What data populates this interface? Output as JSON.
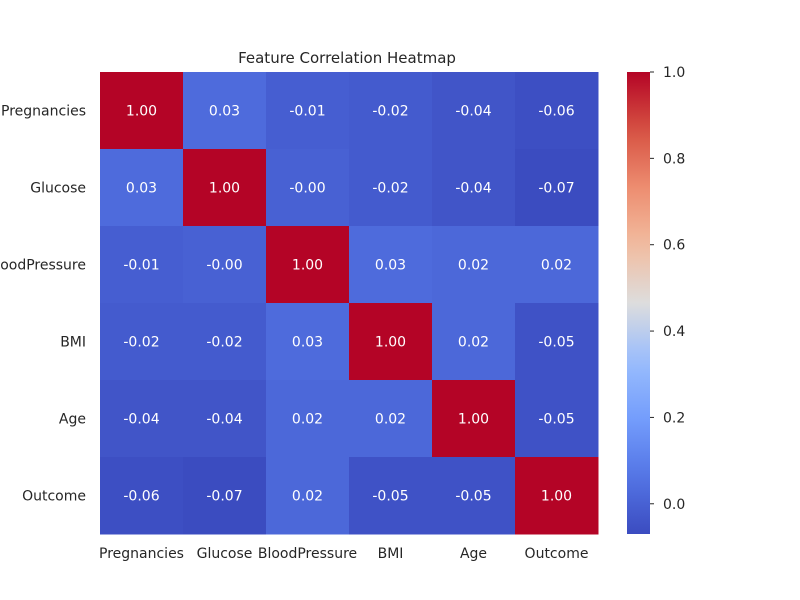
{
  "chart_data": {
    "type": "heatmap",
    "title": "Feature Correlation Heatmap",
    "rows": [
      "Pregnancies",
      "Glucose",
      "BloodPressure",
      "BMI",
      "Age",
      "Outcome"
    ],
    "columns": [
      "Pregnancies",
      "Glucose",
      "BloodPressure",
      "BMI",
      "Age",
      "Outcome"
    ],
    "values": [
      [
        1.0,
        0.03,
        -0.01,
        -0.02,
        -0.04,
        -0.06
      ],
      [
        0.03,
        1.0,
        -0.0,
        -0.02,
        -0.04,
        -0.07
      ],
      [
        -0.01,
        -0.0,
        1.0,
        0.03,
        0.02,
        0.02
      ],
      [
        -0.02,
        -0.02,
        0.03,
        1.0,
        0.02,
        -0.05
      ],
      [
        -0.04,
        -0.04,
        0.02,
        0.02,
        1.0,
        -0.05
      ],
      [
        -0.06,
        -0.07,
        0.02,
        -0.05,
        -0.05,
        1.0
      ]
    ],
    "cell_labels": [
      [
        "1.00",
        "0.03",
        "-0.01",
        "-0.02",
        "-0.04",
        "-0.06"
      ],
      [
        "0.03",
        "1.00",
        "-0.00",
        "-0.02",
        "-0.04",
        "-0.07"
      ],
      [
        "-0.01",
        "-0.00",
        "1.00",
        "0.03",
        "0.02",
        "0.02"
      ],
      [
        "-0.02",
        "-0.02",
        "0.03",
        "1.00",
        "0.02",
        "-0.05"
      ],
      [
        "-0.04",
        "-0.04",
        "0.02",
        "0.02",
        "1.00",
        "-0.05"
      ],
      [
        "-0.06",
        "-0.07",
        "0.02",
        "-0.05",
        "-0.05",
        "1.00"
      ]
    ],
    "colorbar": {
      "min": -0.07,
      "max": 1.0,
      "ticks": [
        0.0,
        0.2,
        0.4,
        0.6,
        0.8,
        1.0
      ],
      "tick_labels": [
        "0.0",
        "0.2",
        "0.4",
        "0.6",
        "0.8",
        "1.0"
      ],
      "colormap": "coolwarm",
      "color_low": "#3b4cc0",
      "color_mid": "#dddddd",
      "color_high": "#b40426"
    },
    "grid": false,
    "legend": "colorbar-right"
  }
}
